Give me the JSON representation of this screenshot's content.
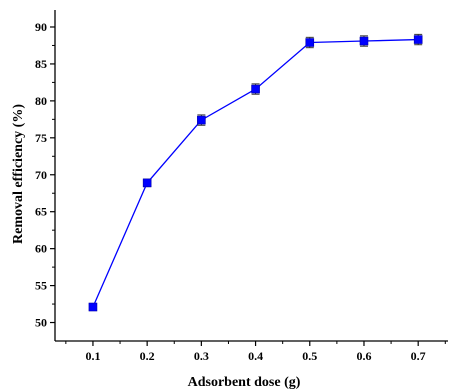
{
  "chart_data": {
    "type": "line",
    "title": "",
    "xlabel": "Adsorbent dose (g)",
    "ylabel": "Removal efficiency (%)",
    "x": [
      0.1,
      0.2,
      0.3,
      0.4,
      0.5,
      0.6,
      0.7
    ],
    "x_ticks": [
      "0.1",
      "0.2",
      "0.3",
      "0.4",
      "0.5",
      "0.6",
      "0.7"
    ],
    "xlim": [
      0.03,
      0.755
    ],
    "y_ticks": [
      "50",
      "55",
      "60",
      "65",
      "70",
      "75",
      "80",
      "85",
      "90"
    ],
    "ylim": [
      47.5,
      92.3
    ],
    "series": [
      {
        "values": [
          52.1,
          68.9,
          77.4,
          81.6,
          87.9,
          88.1,
          88.3
        ],
        "errors": [
          0.4,
          0.5,
          0.7,
          0.7,
          0.7,
          0.7,
          0.7
        ],
        "color": "#0000ff",
        "marker": "square"
      }
    ],
    "grid": false,
    "legend": "none"
  }
}
